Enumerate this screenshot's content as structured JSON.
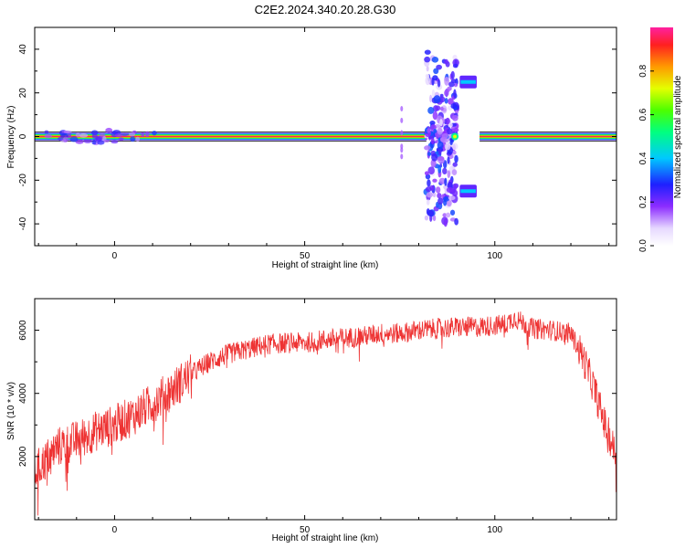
{
  "title": "C2E2.2024.340.20.28.G30",
  "chart_data": [
    {
      "type": "heatmap",
      "xlabel": "Height of straight line (km)",
      "ylabel": "Frequency (Hz)",
      "xlim": [
        -21,
        132
      ],
      "ylim": [
        -50,
        50
      ],
      "x_ticks": [
        0,
        50,
        100
      ],
      "y_ticks": [
        -40,
        -20,
        0,
        20,
        40
      ],
      "colorbar": {
        "label": "Normalized spectral amplitude",
        "range": [
          0,
          1
        ],
        "ticks": [
          0.0,
          0.2,
          0.4,
          0.6,
          0.8
        ]
      },
      "features": [
        {
          "name": "carrier",
          "freq": 0,
          "x_from": -21,
          "x_to": 82,
          "amplitude": 1.0
        },
        {
          "name": "carrier",
          "freq": 0,
          "x_from": 96,
          "x_to": 132,
          "amplitude": 1.0
        },
        {
          "name": "spread",
          "x_from": 82,
          "x_to": 90,
          "freq_from": -40,
          "freq_to": 40,
          "amplitude": 0.3
        },
        {
          "name": "sideband",
          "freq": 25,
          "x_from": 91,
          "x_to": 95,
          "amplitude": 0.2
        },
        {
          "name": "sideband",
          "freq": -25,
          "x_from": 91,
          "x_to": 95,
          "amplitude": 0.2
        }
      ]
    },
    {
      "type": "line",
      "xlabel": "Height of straight line (km)",
      "ylabel": "SNR (10 * v/v)",
      "xlim": [
        -21,
        132
      ],
      "ylim": [
        0,
        7000
      ],
      "x_ticks": [
        0,
        50,
        100
      ],
      "y_ticks": [
        2000,
        4000,
        6000
      ],
      "color": "#ee3333",
      "series": [
        {
          "x": [
            -21,
            -15,
            -10,
            -5,
            0,
            5,
            10,
            15,
            20,
            25,
            30,
            35,
            40,
            45,
            50,
            55,
            60,
            65,
            70,
            75,
            80,
            85,
            90,
            95,
            100,
            103,
            105,
            110,
            115,
            120,
            123,
            126,
            129,
            132
          ],
          "values": [
            1500,
            2300,
            2500,
            2800,
            3000,
            3300,
            3700,
            4100,
            4600,
            5000,
            5250,
            5400,
            5550,
            5600,
            5600,
            5700,
            5750,
            5800,
            5900,
            5900,
            6000,
            6050,
            6100,
            6100,
            6150,
            6200,
            6400,
            6050,
            6000,
            5900,
            5200,
            4200,
            3000,
            2000
          ]
        }
      ]
    }
  ]
}
